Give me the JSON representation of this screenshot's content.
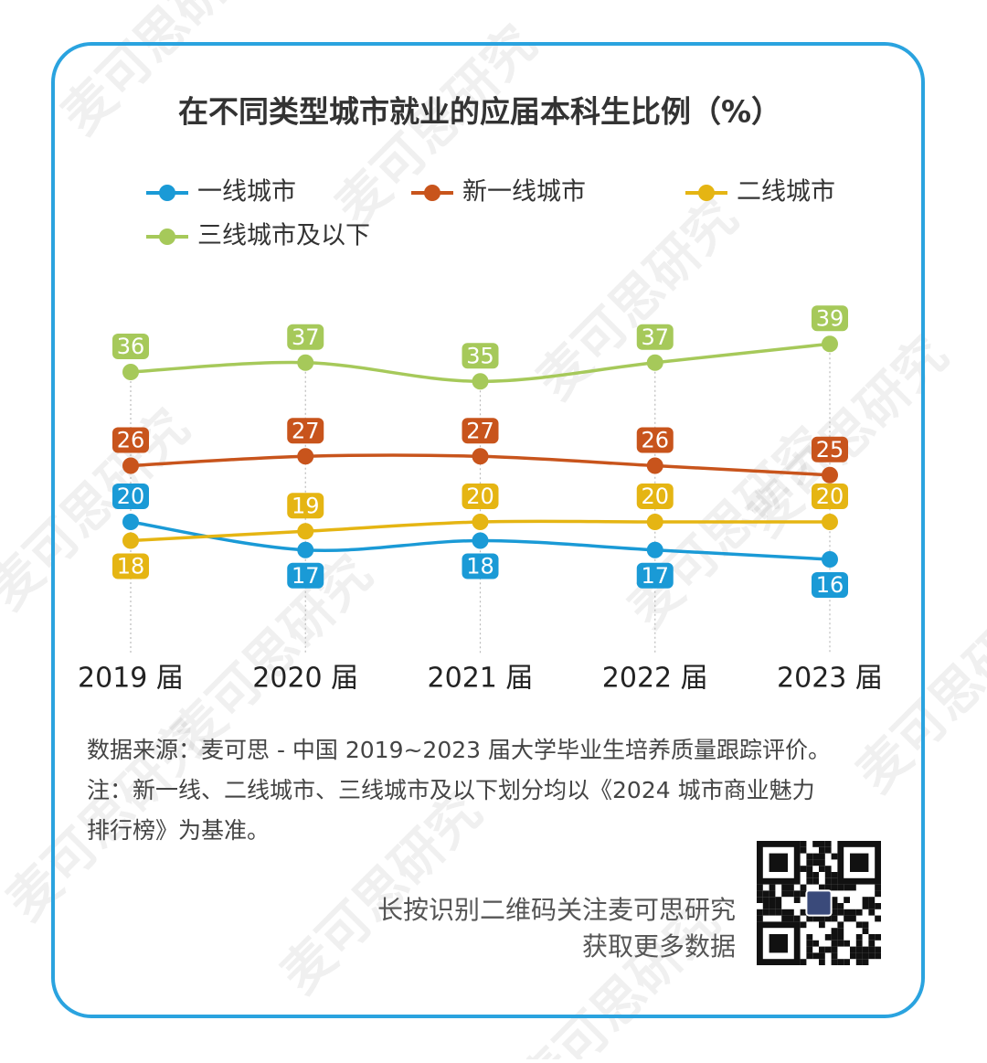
{
  "chart_data": {
    "type": "line",
    "title": "在不同类型城市就业的应届本科生比例（%）",
    "categories": [
      "2019 届",
      "2020 届",
      "2021 届",
      "2022 届",
      "2023 届"
    ],
    "series": [
      {
        "name": "一线城市",
        "color": "#1a9ad6",
        "values": [
          20,
          17,
          18,
          17,
          16
        ]
      },
      {
        "name": "新一线城市",
        "color": "#c8541c",
        "values": [
          26,
          27,
          27,
          26,
          25
        ]
      },
      {
        "name": "二线城市",
        "color": "#e5b513",
        "values": [
          18,
          19,
          20,
          20,
          20
        ]
      },
      {
        "name": "三线城市及以下",
        "color": "#a6c95a",
        "values": [
          36,
          37,
          35,
          37,
          39
        ]
      }
    ],
    "ylim": [
      10,
      45
    ]
  },
  "footer": {
    "source": "数据来源：麦可思 - 中国 2019~2023 届大学毕业生培养质量跟踪评价。",
    "note": [
      "注：新一线、二线城市、三线城市及以下划分均以《2024 城市商业魅力",
      "排行榜》为基准。"
    ]
  },
  "qr_caption": [
    "长按识别二维码关注麦可思研究",
    "获取更多数据"
  ],
  "watermark": "麦可思研究"
}
